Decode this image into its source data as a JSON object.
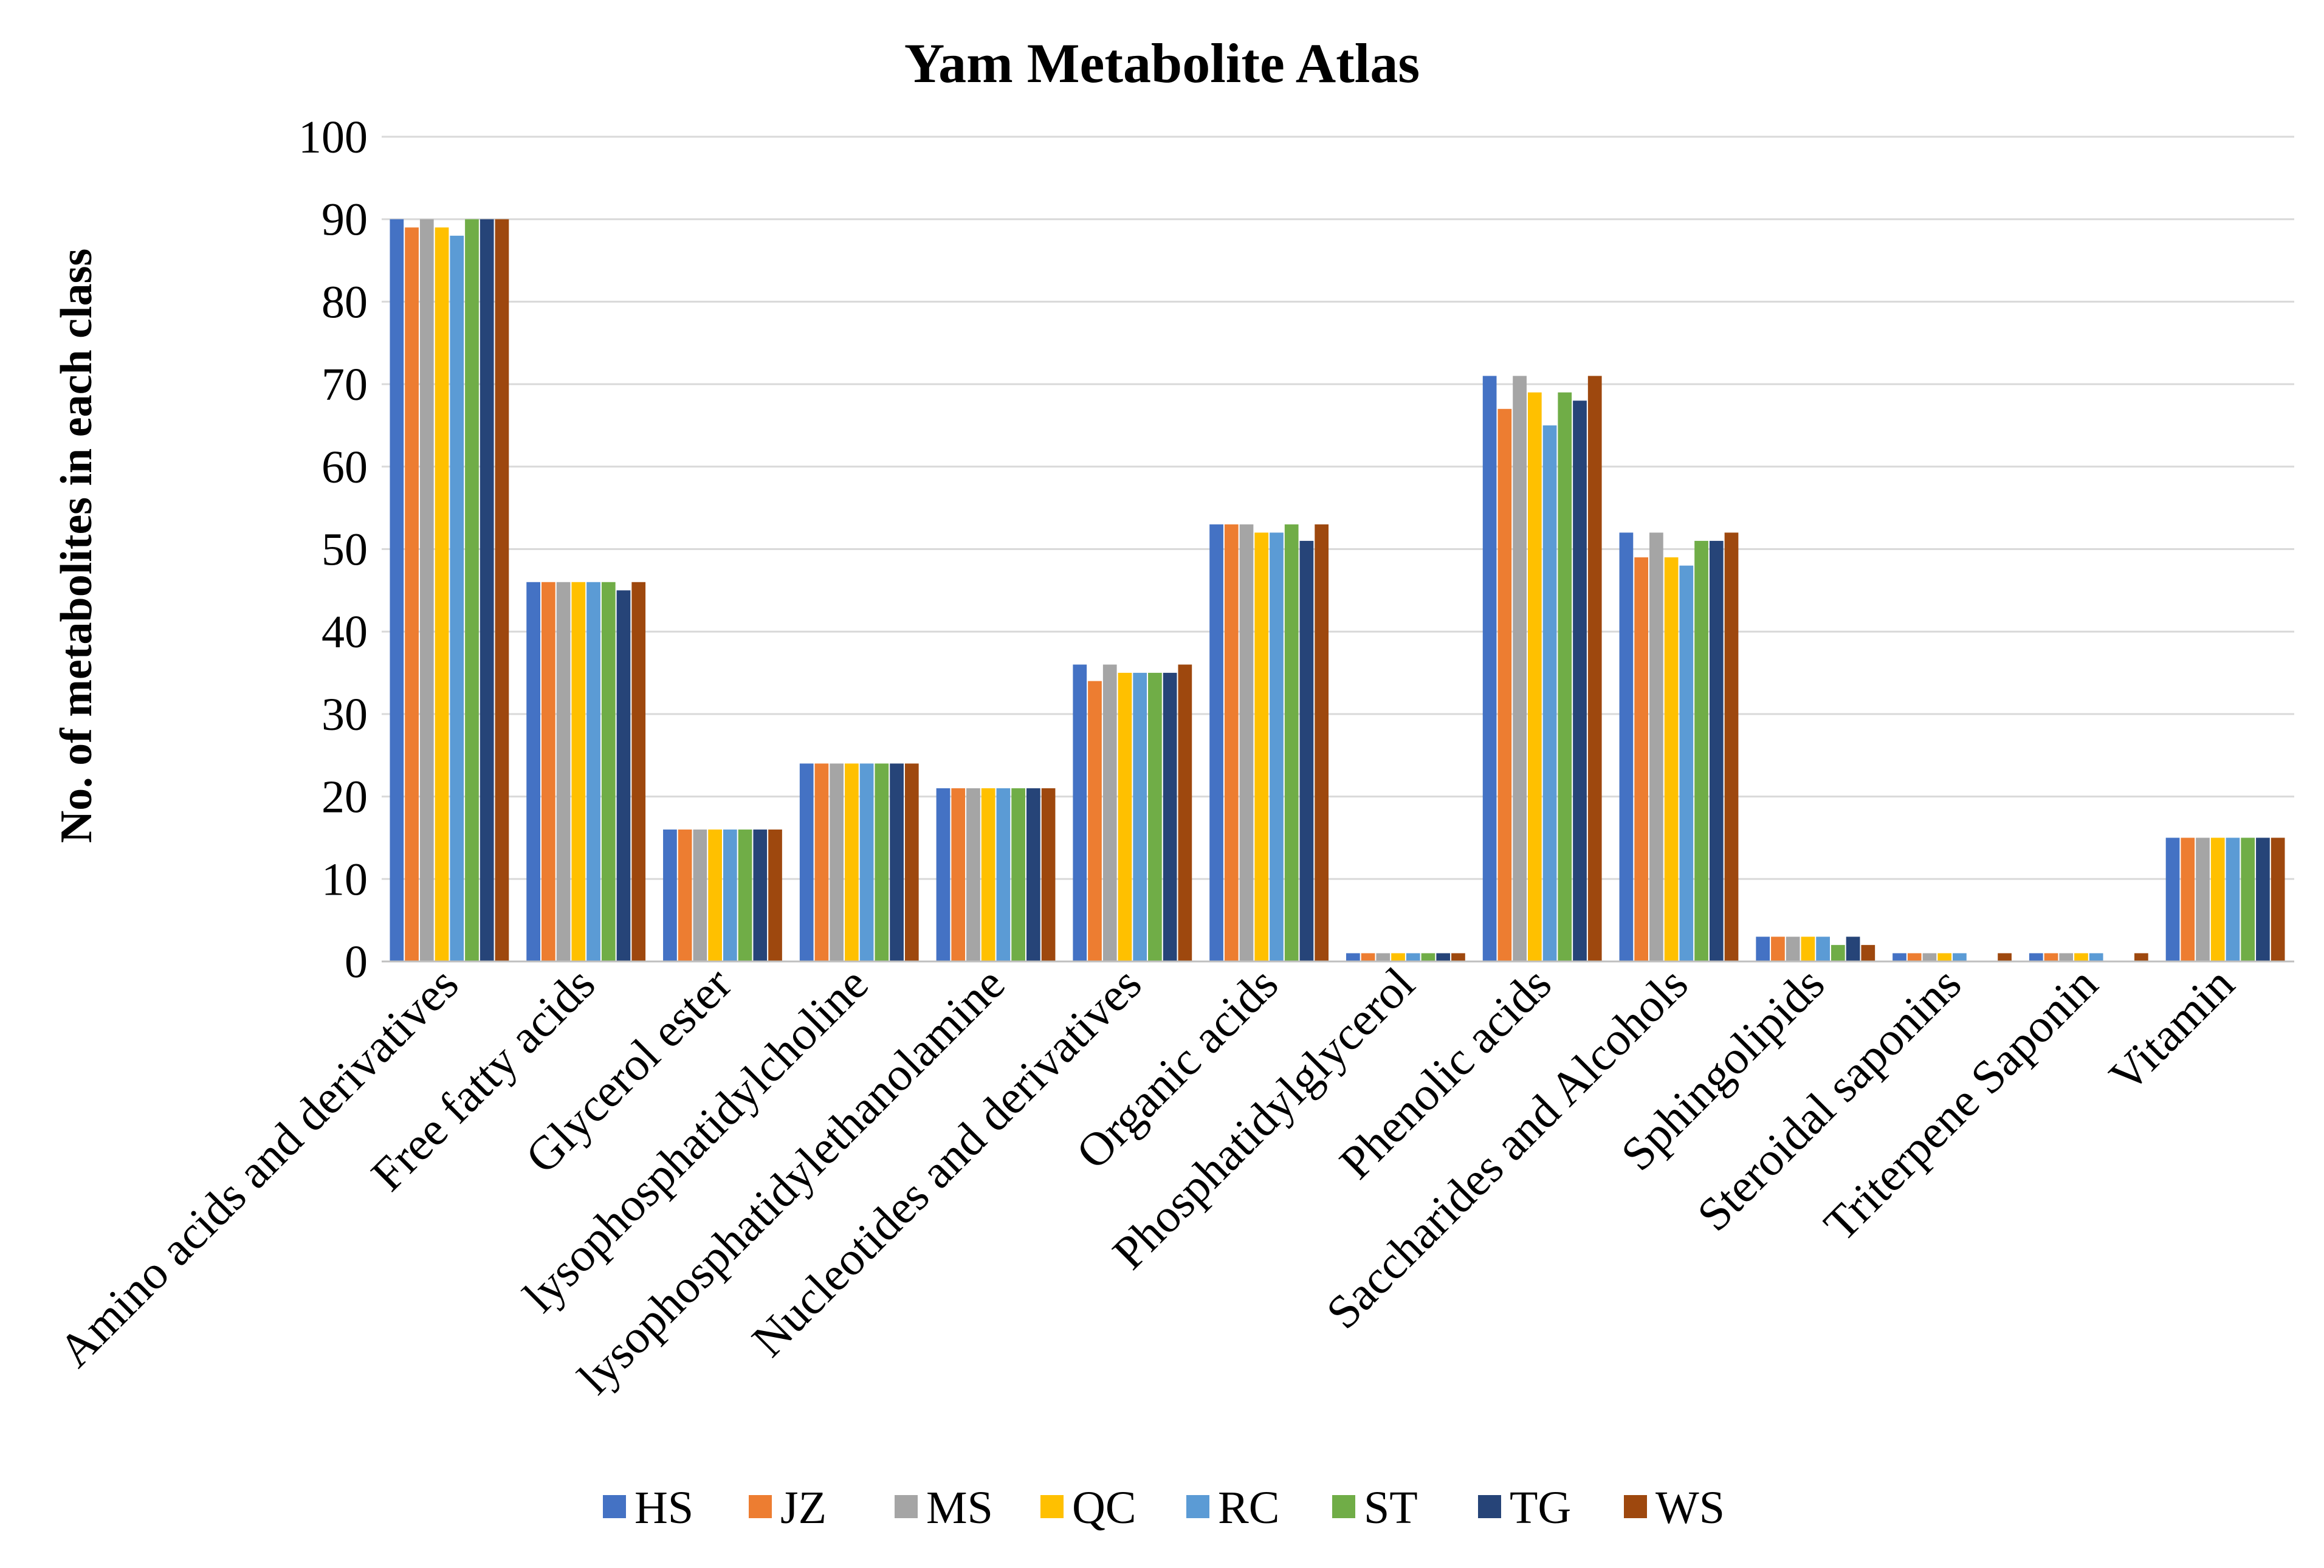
{
  "chart_data": {
    "type": "bar",
    "title": "Yam Metabolite Atlas",
    "xlabel": "",
    "ylabel": "No. of  metabolites in each class",
    "ylim": [
      0,
      100
    ],
    "yticks": [
      "0",
      "10",
      "20",
      "30",
      "40",
      "50",
      "60",
      "70",
      "80",
      "90",
      "100"
    ],
    "grid": true,
    "legend_position": "bottom",
    "categories": [
      "Amino acids and derivatives",
      "Free fatty acids",
      "Glycerol ester",
      "lysophosphatidylcholine",
      "lysophosphatidylethanolamine",
      "Nucleotides and derivatives",
      "Organic acids",
      "Phosphatidylglycerol",
      "Phenolic acids",
      "Saccharides and Alcohols",
      "Sphingolipids",
      "Steroidal saponins",
      "Triterpene Saponin",
      "Vitamin"
    ],
    "series": [
      {
        "name": "HS",
        "color": "#4472C4",
        "values": [
          90,
          46,
          16,
          24,
          21,
          36,
          53,
          1,
          71,
          52,
          3,
          1,
          1,
          15
        ]
      },
      {
        "name": "JZ",
        "color": "#ED7D31",
        "values": [
          89,
          46,
          16,
          24,
          21,
          34,
          53,
          1,
          67,
          49,
          3,
          1,
          1,
          15
        ]
      },
      {
        "name": "MS",
        "color": "#A5A5A5",
        "values": [
          90,
          46,
          16,
          24,
          21,
          36,
          53,
          1,
          71,
          52,
          3,
          1,
          1,
          15
        ]
      },
      {
        "name": "QC",
        "color": "#FFC000",
        "values": [
          89,
          46,
          16,
          24,
          21,
          35,
          52,
          1,
          69,
          49,
          3,
          1,
          1,
          15
        ]
      },
      {
        "name": "RC",
        "color": "#5B9BD5",
        "values": [
          88,
          46,
          16,
          24,
          21,
          35,
          52,
          1,
          65,
          48,
          3,
          1,
          1,
          15
        ]
      },
      {
        "name": "ST",
        "color": "#70AD47",
        "values": [
          90,
          46,
          16,
          24,
          21,
          35,
          53,
          1,
          69,
          51,
          2,
          0,
          0,
          15
        ]
      },
      {
        "name": "TG",
        "color": "#264478",
        "values": [
          90,
          45,
          16,
          24,
          21,
          35,
          51,
          1,
          68,
          51,
          3,
          0,
          0,
          15
        ]
      },
      {
        "name": "WS",
        "color": "#9E480E",
        "values": [
          90,
          46,
          16,
          24,
          21,
          36,
          53,
          1,
          71,
          52,
          2,
          1,
          1,
          15
        ]
      }
    ]
  }
}
